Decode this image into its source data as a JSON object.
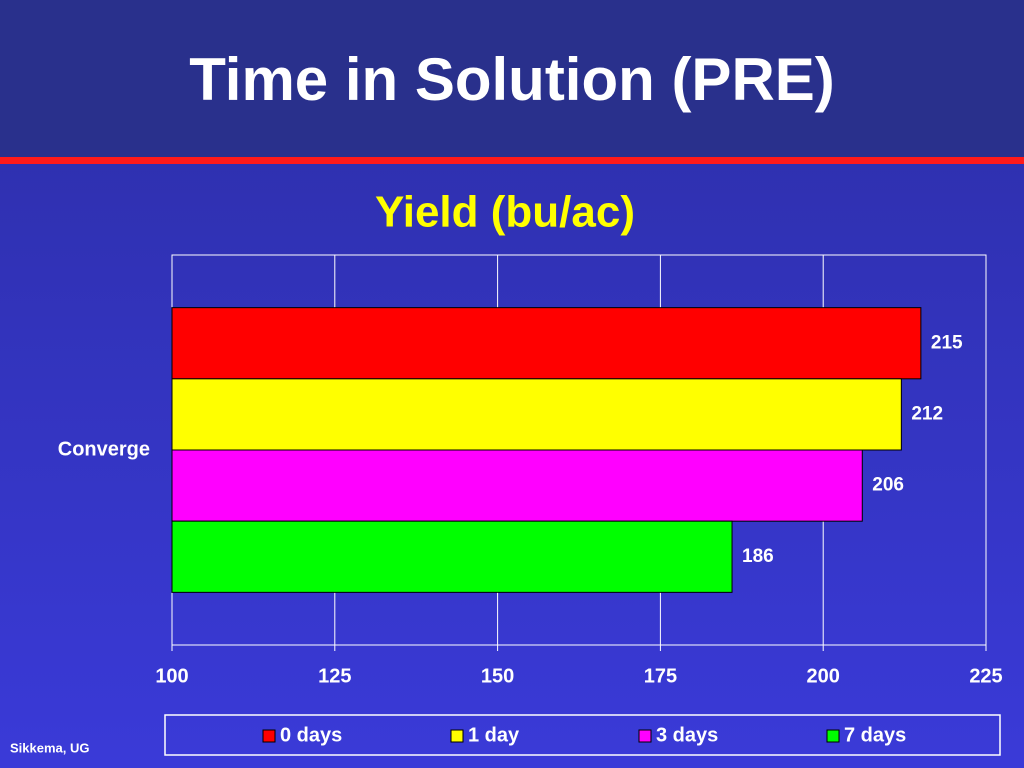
{
  "slide": {
    "title": "Time in Solution (PRE)",
    "footer": "Sikkema, UG"
  },
  "chart_data": {
    "type": "hbar",
    "title": "Yield (bu/ac)",
    "categories": [
      "Converge"
    ],
    "series": [
      {
        "name": "0 days",
        "color": "#ff0000",
        "values": [
          215
        ]
      },
      {
        "name": "1 day",
        "color": "#ffff00",
        "values": [
          212
        ]
      },
      {
        "name": "3 days",
        "color": "#ff00ff",
        "values": [
          206
        ]
      },
      {
        "name": "7 days",
        "color": "#00ff00",
        "values": [
          186
        ]
      }
    ],
    "xlim": [
      100,
      225
    ],
    "xticks": [
      100,
      125,
      150,
      175,
      200,
      225
    ],
    "grid": true,
    "legend": "bottom"
  }
}
